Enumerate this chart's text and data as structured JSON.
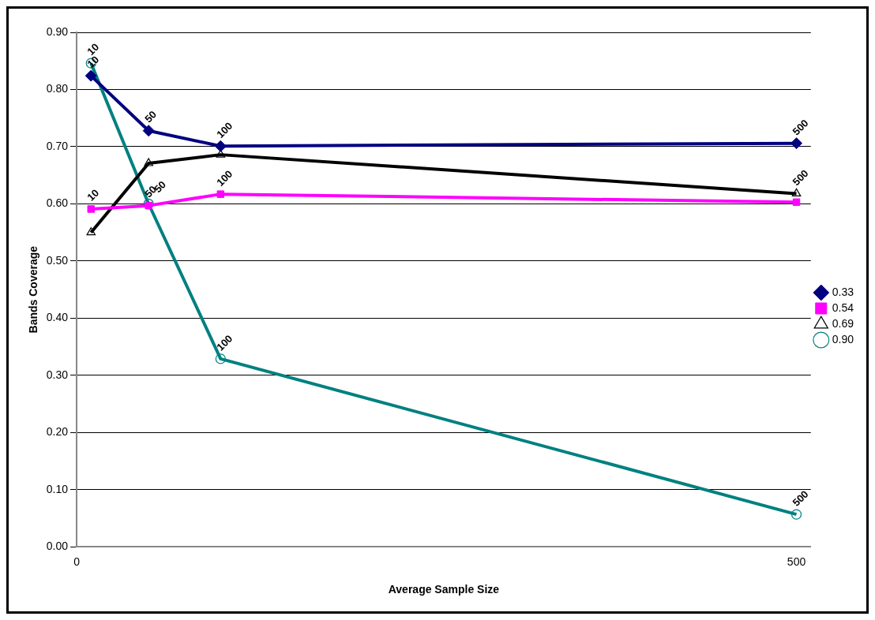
{
  "chart_data": {
    "type": "line",
    "xlabel": "Average Sample Size",
    "ylabel": "Bands Coverage",
    "xlim": [
      0,
      510
    ],
    "xticks": [
      0,
      500
    ],
    "ylim": [
      0,
      0.9
    ],
    "yticks": [
      {
        "value": 0,
        "label": "0.00"
      },
      {
        "value": 0.1,
        "label": "0.10"
      },
      {
        "value": 0.2,
        "label": "0.20"
      },
      {
        "value": 0.3,
        "label": "0.30"
      },
      {
        "value": 0.4,
        "label": "0.40"
      },
      {
        "value": 0.5,
        "label": "0.50"
      },
      {
        "value": 0.6,
        "label": "0.60"
      },
      {
        "value": 0.7,
        "label": "0.70"
      },
      {
        "value": 0.8,
        "label": "0.80"
      },
      {
        "value": 0.9,
        "label": "0.90"
      }
    ],
    "grid": "y",
    "legend": "right",
    "line_style": "solid",
    "x": [
      10,
      50,
      100,
      500
    ],
    "series": [
      {
        "name": "0.33",
        "color": "#000080",
        "marker": "diamond",
        "values": [
          0.824,
          0.728,
          0.701,
          0.706
        ]
      },
      {
        "name": "0.54",
        "color": "#ff00ff",
        "marker": "square",
        "values": [
          0.591,
          0.597,
          0.617,
          0.603
        ]
      },
      {
        "name": "0.69",
        "color": "#000000",
        "marker": "triangle",
        "values": [
          0.55,
          0.671,
          0.686,
          0.618
        ]
      },
      {
        "name": "0.90",
        "color": "#008080",
        "marker": "circle",
        "values": [
          0.846,
          0.6,
          0.329,
          0.057
        ]
      }
    ],
    "annotations": [
      {
        "text": "10",
        "x": 10,
        "y": 0.824
      },
      {
        "text": "50",
        "x": 50,
        "y": 0.728
      },
      {
        "text": "100",
        "x": 100,
        "y": 0.701
      },
      {
        "text": "500",
        "x": 500,
        "y": 0.706
      },
      {
        "text": "10",
        "x": 10,
        "y": 0.591
      },
      {
        "text": "50",
        "x": 50,
        "y": 0.597
      },
      {
        "text": "100",
        "x": 100,
        "y": 0.617
      },
      {
        "text": "500",
        "x": 500,
        "y": 0.618
      },
      {
        "text": "10",
        "x": 10,
        "y": 0.846
      },
      {
        "text": "50",
        "x": 50,
        "y": 0.6
      },
      {
        "text": "100",
        "x": 100,
        "y": 0.329
      },
      {
        "text": "500",
        "x": 500,
        "y": 0.057
      }
    ]
  }
}
